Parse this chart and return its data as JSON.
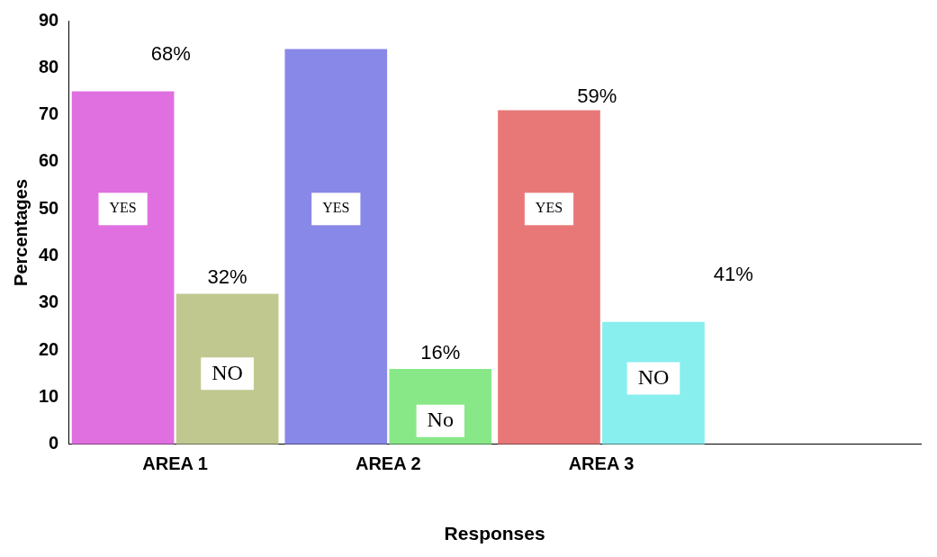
{
  "chart_data": {
    "type": "bar",
    "xlabel": "Responses",
    "ylabel": "Percentages",
    "categories": [
      "AREA 1",
      "AREA 2",
      "AREA 3",
      null
    ],
    "series": [
      {
        "colors": [
          "#e070e0",
          "#8888e8",
          "#e87878",
          null
        ],
        "values": [
          75,
          84,
          71,
          null
        ]
      },
      {
        "colors": [
          "#c0c890",
          "#88e888",
          "#88eeee",
          null
        ],
        "values": [
          32,
          16,
          26,
          null
        ],
        "value_labels": [
          "32%",
          "16%",
          null,
          null
        ]
      }
    ],
    "annotations": [
      {
        "text": "YES",
        "x": "AREA 1",
        "y": 50
      },
      {
        "text": "NO",
        "x": "AREA 1",
        "y": 15
      },
      {
        "text": "YES",
        "x": "AREA 2",
        "y": 50
      },
      {
        "text": "No",
        "x": "AREA 2",
        "y": 5
      },
      {
        "text": "YES",
        "x": "AREA 3",
        "y": 50
      },
      {
        "text": "NO",
        "x": "AREA 3",
        "y": 14
      },
      "68%",
      "59%",
      "41%"
    ],
    "ylim": [
      0,
      90
    ],
    "yticks": [
      0,
      10,
      20,
      30,
      40,
      50,
      60,
      70,
      80,
      90
    ],
    "grid": false,
    "legend": false
  }
}
